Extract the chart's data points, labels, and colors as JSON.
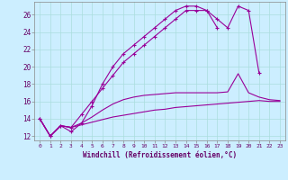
{
  "xlabel": "Windchill (Refroidissement éolien,°C)",
  "x": [
    0,
    1,
    2,
    3,
    4,
    5,
    6,
    7,
    8,
    9,
    10,
    11,
    12,
    13,
    14,
    15,
    16,
    17,
    18,
    19,
    20,
    21,
    22,
    23
  ],
  "line_upper": [
    14,
    12,
    13.2,
    12.5,
    13.5,
    15.5,
    18,
    20,
    21.5,
    22.5,
    23.5,
    24.5,
    25.5,
    26.5,
    27,
    27,
    26.5,
    24.5,
    null,
    null,
    null,
    null,
    null,
    null
  ],
  "line_mid": [
    14,
    12,
    13.2,
    13,
    14.5,
    16,
    17.5,
    19,
    20.5,
    21.5,
    22.5,
    23.5,
    24.5,
    25.5,
    26.5,
    26.5,
    26.5,
    25.5,
    24.5,
    27,
    26.5,
    19.3,
    null,
    null
  ],
  "line_lower1": [
    14,
    12,
    13.2,
    13,
    13.5,
    14.2,
    15.0,
    15.7,
    16.2,
    16.5,
    16.7,
    16.8,
    16.9,
    17.0,
    17.0,
    17.0,
    17.0,
    17.0,
    17.1,
    19.2,
    17,
    16.5,
    16.2,
    16.1
  ],
  "line_lower2": [
    14,
    12,
    13.2,
    13,
    13.3,
    13.6,
    13.9,
    14.2,
    14.4,
    14.6,
    14.8,
    15.0,
    15.1,
    15.3,
    15.4,
    15.5,
    15.6,
    15.7,
    15.8,
    15.9,
    16.0,
    16.1,
    16.0,
    16.0
  ],
  "bg_color": "#cceeff",
  "line_color": "#990099",
  "grid_color": "#aadddd",
  "text_color": "#660066",
  "ylim": [
    11.5,
    27.5
  ],
  "yticks": [
    12,
    14,
    16,
    18,
    20,
    22,
    24,
    26
  ],
  "xticks": [
    0,
    1,
    2,
    3,
    4,
    5,
    6,
    7,
    8,
    9,
    10,
    11,
    12,
    13,
    14,
    15,
    16,
    17,
    18,
    19,
    20,
    21,
    22,
    23
  ]
}
